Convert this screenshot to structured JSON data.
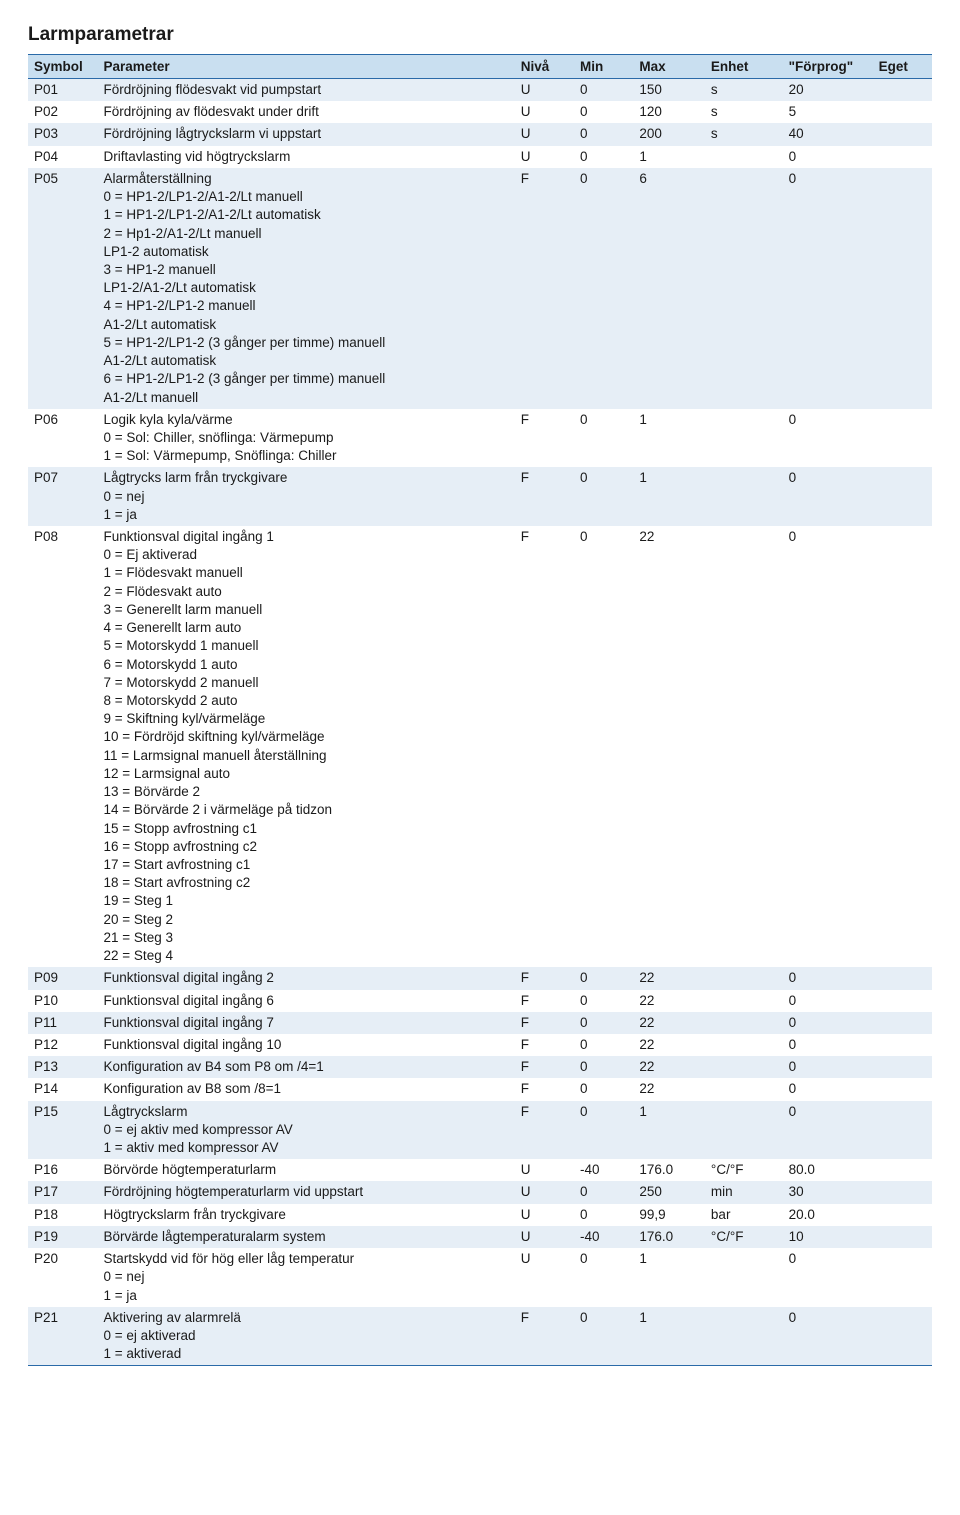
{
  "title": "Larmparametrar",
  "columns": {
    "symbol": "Symbol",
    "parameter": "Parameter",
    "niva": "Nivå",
    "min": "Min",
    "max": "Max",
    "enhet": "Enhet",
    "forprog": "\"Förprog\"",
    "eget": "Eget"
  },
  "rows": [
    {
      "sym": "P01",
      "param": "Fördröjning flödesvakt vid pumpstart",
      "niva": "U",
      "min": "0",
      "max": "150",
      "enhet": "s",
      "forp": "20",
      "shade": true
    },
    {
      "sym": "P02",
      "param": "Fördröjning av flödesvakt under drift",
      "niva": "U",
      "min": "0",
      "max": "120",
      "enhet": "s",
      "forp": "5",
      "shade": false
    },
    {
      "sym": "P03",
      "param": "Fördröjning lågtryckslarm vi uppstart",
      "niva": "U",
      "min": "0",
      "max": "200",
      "enhet": "s",
      "forp": "40",
      "shade": true
    },
    {
      "sym": "P04",
      "param": "Driftavlasting vid högtryckslarm",
      "niva": "U",
      "min": "0",
      "max": "1",
      "enhet": "",
      "forp": "0",
      "shade": false
    },
    {
      "sym": "P05",
      "param": "Alarmåterställning",
      "sub": "0 = HP1-2/LP1-2/A1-2/Lt manuell\n1 = HP1-2/LP1-2/A1-2/Lt automatisk\n2 = Hp1-2/A1-2/Lt manuell\nLP1-2 automatisk\n3 = HP1-2 manuell\nLP1-2/A1-2/Lt automatisk\n4 = HP1-2/LP1-2 manuell\nA1-2/Lt automatisk\n5 = HP1-2/LP1-2 (3 gånger per timme) manuell\nA1-2/Lt automatisk\n6 = HP1-2/LP1-2 (3 gånger per timme) manuell\nA1-2/Lt manuell",
      "niva": "F",
      "min": "0",
      "max": "6",
      "enhet": "",
      "forp": "0",
      "shade": true
    },
    {
      "sym": "P06",
      "param": "Logik kyla kyla/värme",
      "sub": "0 = Sol: Chiller, snöflinga: Värmepump\n1 = Sol: Värmepump, Snöflinga: Chiller",
      "niva": "F",
      "min": "0",
      "max": "1",
      "enhet": "",
      "forp": "0",
      "shade": false
    },
    {
      "sym": "P07",
      "param": "Lågtrycks larm från tryckgivare",
      "sub": "0 = nej\n1 = ja",
      "niva": "F",
      "min": "0",
      "max": "1",
      "enhet": "",
      "forp": "0",
      "shade": true
    },
    {
      "sym": "P08",
      "param": "Funktionsval digital ingång 1",
      "sub": "0 = Ej aktiverad\n1 = Flödesvakt  manuell\n2 = Flödesvakt auto\n3 = Generellt larm manuell\n4 = Generellt larm auto\n5 = Motorskydd 1 manuell\n6 = Motorskydd 1 auto\n7 = Motorskydd 2  manuell\n8 = Motorskydd 2 auto\n9 = Skiftning kyl/värmeläge\n10 = Fördröjd skiftning kyl/värmeläge\n11 = Larmsignal manuell återställning\n12 = Larmsignal auto\n13 = Börvärde 2\n14 = Börvärde 2 i värmeläge på tidzon\n15 = Stopp avfrostning c1\n16 = Stopp avfrostning c2\n17 = Start avfrostning c1\n18 = Start avfrostning c2\n19 = Steg 1\n20 = Steg 2\n21 = Steg 3\n22 = Steg 4",
      "niva": "F",
      "min": "0",
      "max": "22",
      "enhet": "",
      "forp": "0",
      "shade": false
    },
    {
      "sym": "P09",
      "param": "Funktionsval digital ingång 2",
      "niva": "F",
      "min": "0",
      "max": "22",
      "enhet": "",
      "forp": "0",
      "shade": true
    },
    {
      "sym": "P10",
      "param": "Funktionsval digital ingång 6",
      "niva": "F",
      "min": "0",
      "max": "22",
      "enhet": "",
      "forp": "0",
      "shade": false
    },
    {
      "sym": "P11",
      "param": "Funktionsval digital ingång 7",
      "niva": "F",
      "min": "0",
      "max": "22",
      "enhet": "",
      "forp": "0",
      "shade": true
    },
    {
      "sym": "P12",
      "param": "Funktionsval digital ingång 10",
      "niva": "F",
      "min": "0",
      "max": "22",
      "enhet": "",
      "forp": "0",
      "shade": false
    },
    {
      "sym": "P13",
      "param": "Konfiguration av B4 som P8 om /4=1",
      "niva": "F",
      "min": "0",
      "max": "22",
      "enhet": "",
      "forp": "0",
      "shade": true
    },
    {
      "sym": "P14",
      "param": "Konfiguration av B8 som  /8=1",
      "niva": "F",
      "min": "0",
      "max": "22",
      "enhet": "",
      "forp": "0",
      "shade": false
    },
    {
      "sym": "P15",
      "param": "Lågtryckslarm",
      "sub": "0 = ej aktiv med kompressor AV\n1 = aktiv med kompressor AV",
      "niva": "F",
      "min": "0",
      "max": "1",
      "enhet": "",
      "forp": "0",
      "shade": true
    },
    {
      "sym": "P16",
      "param": "Börvörde högtemperaturlarm",
      "niva": "U",
      "min": "-40",
      "max": "176.0",
      "enhet": "°C/°F",
      "forp": "80.0",
      "shade": false
    },
    {
      "sym": "P17",
      "param": "Fördröjning högtemperaturlarm vid uppstart",
      "niva": "U",
      "min": "0",
      "max": "250",
      "enhet": "min",
      "forp": "30",
      "shade": true
    },
    {
      "sym": "P18",
      "param": "Högtryckslarm från tryckgivare",
      "niva": "U",
      "min": "0",
      "max": "99,9",
      "enhet": "bar",
      "forp": "20.0",
      "shade": false
    },
    {
      "sym": "P19",
      "param": "Börvärde lågtemperaturalarm system",
      "niva": "U",
      "min": "-40",
      "max": "176.0",
      "enhet": "°C/°F",
      "forp": "10",
      "shade": true
    },
    {
      "sym": "P20",
      "param": "Startskydd vid för hög eller låg temperatur",
      "sub": "0 = nej\n1 = ja",
      "niva": "U",
      "min": "0",
      "max": "1",
      "enhet": "",
      "forp": "0",
      "shade": false
    },
    {
      "sym": "P21",
      "param": "Aktivering av alarmrelä",
      "sub": "0 = ej aktiverad\n1 = aktiverad",
      "niva": "F",
      "min": "0",
      "max": "1",
      "enhet": "",
      "forp": "0",
      "shade": true
    }
  ]
}
